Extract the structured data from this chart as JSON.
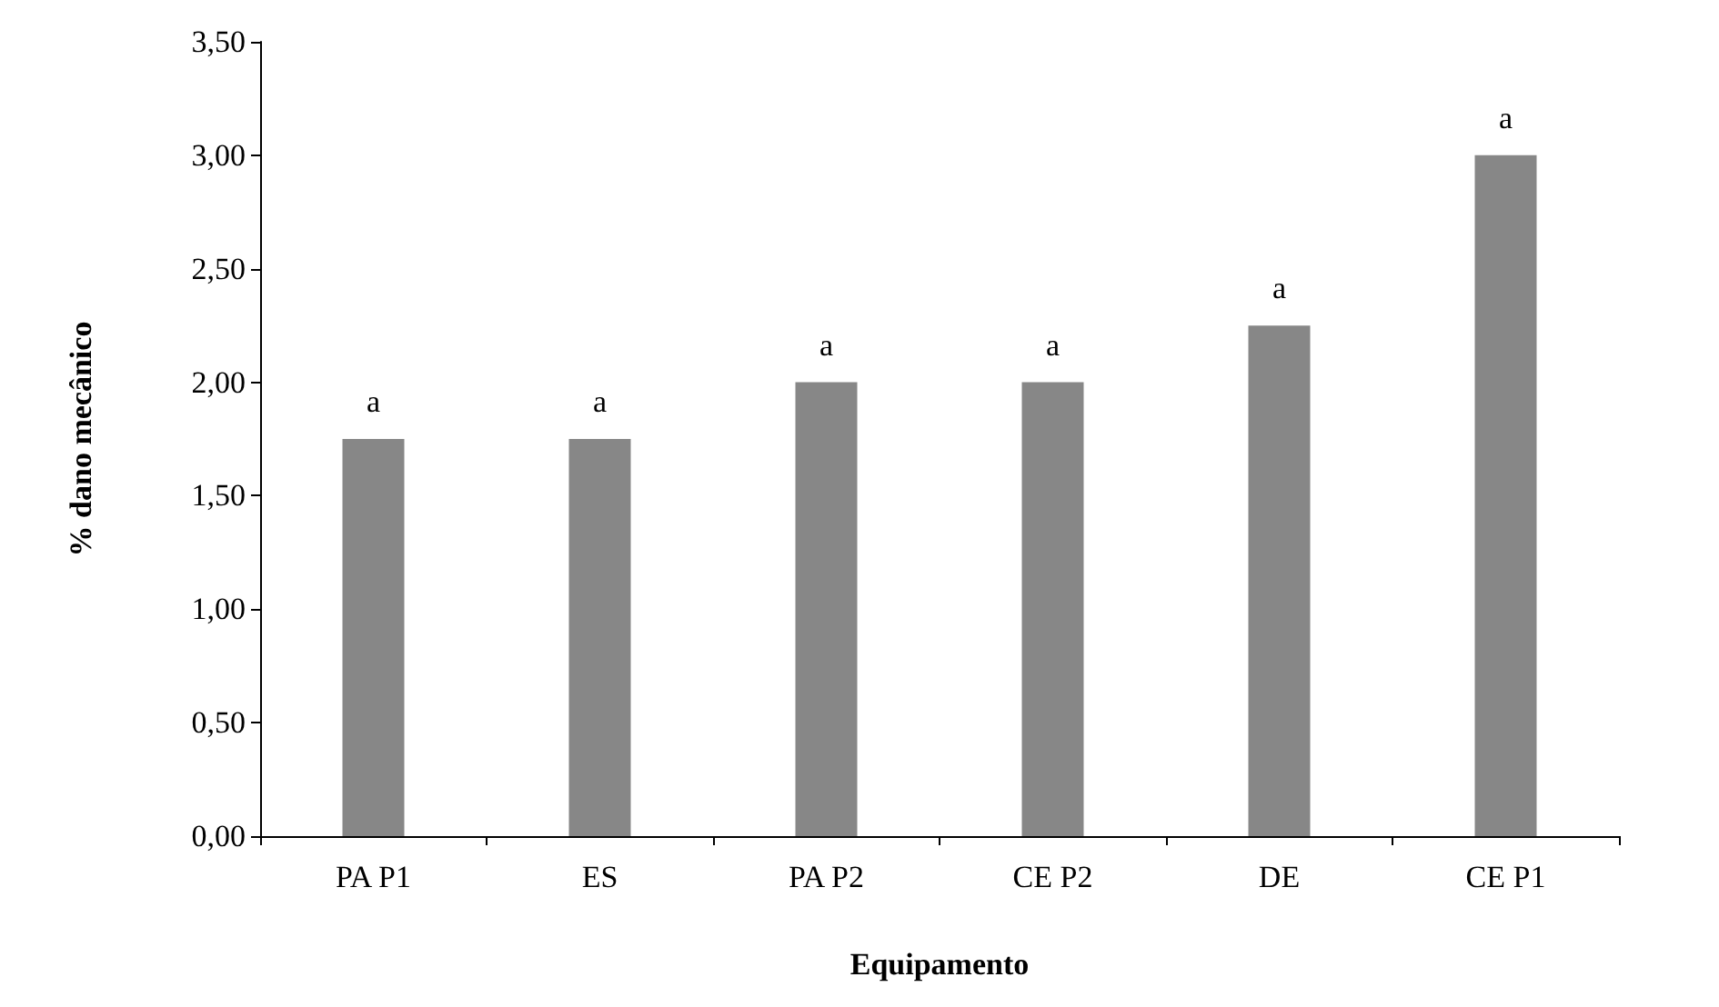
{
  "chart_data": {
    "type": "bar",
    "xlabel": "Equipamento",
    "ylabel": "% dano mecânico",
    "categories": [
      "PA P1",
      "ES",
      "PA P2",
      "CE P2",
      "DE",
      "CE P1"
    ],
    "values": [
      1.75,
      1.75,
      2.0,
      2.0,
      2.25,
      3.0
    ],
    "value_labels": [
      "a",
      "a",
      "a",
      "a",
      "a",
      "a"
    ],
    "color": "#878787",
    "ylim": [
      0,
      3.5
    ],
    "yticks": [
      {
        "value": 0,
        "label": "0,00"
      },
      {
        "value": 0.5,
        "label": "0,50"
      },
      {
        "value": 1,
        "label": "1,00"
      },
      {
        "value": 1.5,
        "label": "1,50"
      },
      {
        "value": 2,
        "label": "2,00"
      },
      {
        "value": 2.5,
        "label": "2,50"
      },
      {
        "value": 3,
        "label": "3,00"
      },
      {
        "value": 3.5,
        "label": "3,50"
      }
    ]
  }
}
